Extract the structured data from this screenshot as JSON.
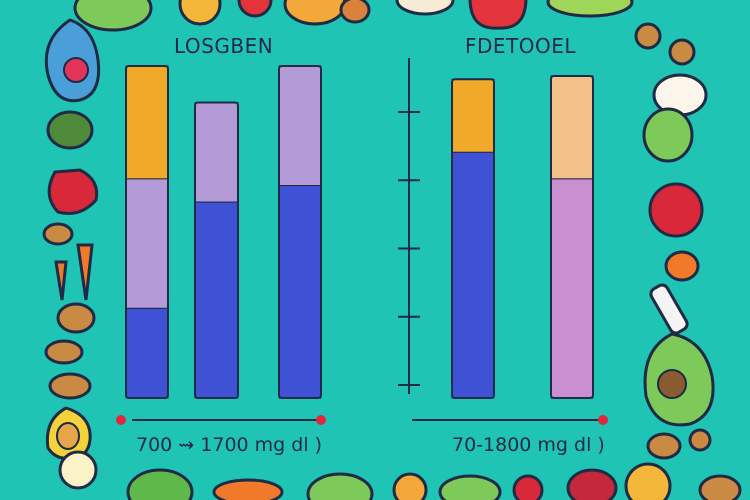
{
  "colors": {
    "background": "#1fc4b4",
    "outline": "#1f2a44",
    "orange": "#f0a928",
    "lavender": "#b49ad6",
    "blue": "#3f52d6",
    "peach": "#f4c08a",
    "pink": "#c98fd0",
    "violet": "#a58be0",
    "red_dot": "#e0283c"
  },
  "chart_data": [
    {
      "type": "bar",
      "stacked": true,
      "title": "LOSGBEN",
      "range_label": "700 ⇝ 1700 mg dl )",
      "ylim": [
        0,
        100
      ],
      "grid": false,
      "legend": "none",
      "categories": [
        "",
        "",
        ""
      ],
      "bars": [
        {
          "segments": [
            {
              "value": 34,
              "color": "orange"
            },
            {
              "value": 39,
              "color": "lavender"
            },
            {
              "value": 27,
              "color": "blue"
            }
          ]
        },
        {
          "segments": [
            {
              "value": 30,
              "color": "lavender"
            },
            {
              "value": 59,
              "color": "blue"
            }
          ]
        },
        {
          "segments": [
            {
              "value": 36,
              "color": "lavender"
            },
            {
              "value": 64,
              "color": "blue"
            }
          ]
        }
      ]
    },
    {
      "type": "bar",
      "stacked": true,
      "title": "FDETOOEL",
      "range_label": "70-1800 mg dl )",
      "ylim": [
        0,
        100
      ],
      "grid": false,
      "legend": "none",
      "axis_ticks": 5,
      "categories": [
        "",
        ""
      ],
      "bars": [
        {
          "segments": [
            {
              "value": 22,
              "color": "orange"
            },
            {
              "value": 74,
              "color": "blue"
            }
          ]
        },
        {
          "segments": [
            {
              "value": 31,
              "color": "peach"
            },
            {
              "value": 66,
              "color": "pink"
            }
          ]
        }
      ]
    }
  ]
}
